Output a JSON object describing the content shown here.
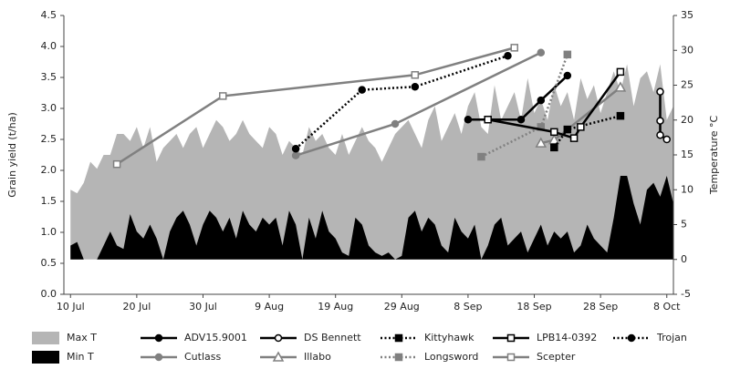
{
  "chart_data": {
    "type": "combo",
    "ylabel": "Grain yield (t/ha)",
    "y2label": "Temperature °C",
    "xlim": [
      "9 Jul",
      "9 Oct"
    ],
    "xticks": [
      "10 Jul",
      "20 Jul",
      "30 Jul",
      "9 Aug",
      "19 Aug",
      "29 Aug",
      "8 Sep",
      "18 Sep",
      "28 Sep",
      "8 Oct"
    ],
    "ylim": [
      0,
      4.5
    ],
    "yticks": [
      {
        "value": 0,
        "label": "0.0"
      },
      {
        "value": 0.5,
        "label": "0.5"
      },
      {
        "value": 1,
        "label": "1.0"
      },
      {
        "value": 1.5,
        "label": "1.5"
      },
      {
        "value": 2,
        "label": "2.0"
      },
      {
        "value": 2.5,
        "label": "2.5"
      },
      {
        "value": 3,
        "label": "3.0"
      },
      {
        "value": 3.5,
        "label": "3.5"
      },
      {
        "value": 4,
        "label": "4.0"
      },
      {
        "value": 4.5,
        "label": "4.5"
      }
    ],
    "y2lim": [
      -5,
      35
    ],
    "y2ticks": [
      -5,
      0,
      5,
      10,
      15,
      20,
      25,
      30,
      35
    ],
    "x": [
      "10 Jul",
      "11 Jul",
      "12 Jul",
      "13 Jul",
      "14 Jul",
      "15 Jul",
      "16 Jul",
      "17 Jul",
      "18 Jul",
      "19 Jul",
      "20 Jul",
      "21 Jul",
      "22 Jul",
      "23 Jul",
      "24 Jul",
      "25 Jul",
      "26 Jul",
      "27 Jul",
      "28 Jul",
      "29 Jul",
      "30 Jul",
      "31 Jul",
      "1 Aug",
      "2 Aug",
      "3 Aug",
      "4 Aug",
      "5 Aug",
      "6 Aug",
      "7 Aug",
      "8 Aug",
      "9 Aug",
      "10 Aug",
      "11 Aug",
      "12 Aug",
      "13 Aug",
      "14 Aug",
      "15 Aug",
      "16 Aug",
      "17 Aug",
      "18 Aug",
      "19 Aug",
      "20 Aug",
      "21 Aug",
      "22 Aug",
      "23 Aug",
      "24 Aug",
      "25 Aug",
      "26 Aug",
      "27 Aug",
      "28 Aug",
      "29 Aug",
      "30 Aug",
      "31 Aug",
      "1 Sep",
      "2 Sep",
      "3 Sep",
      "4 Sep",
      "5 Sep",
      "6 Sep",
      "7 Sep",
      "8 Sep",
      "9 Sep",
      "10 Sep",
      "11 Sep",
      "12 Sep",
      "13 Sep",
      "14 Sep",
      "15 Sep",
      "16 Sep",
      "17 Sep",
      "18 Sep",
      "19 Sep",
      "20 Sep",
      "21 Sep",
      "22 Sep",
      "23 Sep",
      "24 Sep",
      "25 Sep",
      "26 Sep",
      "27 Sep",
      "28 Sep",
      "29 Sep",
      "30 Sep",
      "1 Oct",
      "2 Oct",
      "3 Oct",
      "4 Oct",
      "5 Oct",
      "6 Oct",
      "7 Oct",
      "8 Oct",
      "9 Oct"
    ],
    "series": [
      {
        "name": "Max T",
        "style": "area",
        "axis": "y2",
        "color": "#b5b5b5",
        "values": [
          10,
          9.5,
          11,
          14,
          13,
          15,
          15,
          18,
          18,
          17,
          19,
          16,
          19,
          14,
          16,
          17,
          18,
          16,
          18,
          19,
          16,
          18,
          20,
          19,
          17,
          18,
          20,
          18,
          17,
          16,
          19,
          18,
          15,
          17,
          16,
          15,
          19,
          17,
          18,
          16,
          15,
          18,
          15,
          17,
          19,
          17,
          16,
          14,
          16,
          18,
          19,
          20,
          18,
          16,
          20,
          22,
          17,
          19,
          21,
          18,
          22,
          24,
          19,
          18,
          25,
          20,
          22,
          24,
          20,
          26,
          21,
          23,
          20,
          25,
          22,
          24,
          20,
          26,
          23,
          25,
          21,
          24,
          27,
          24,
          28,
          22,
          26,
          27,
          24,
          28,
          20,
          22
        ]
      },
      {
        "name": "Min T",
        "style": "area",
        "axis": "y2",
        "color": "#000000",
        "values": [
          2,
          2.5,
          0,
          0,
          0,
          2,
          4,
          2,
          1.5,
          6.5,
          4,
          3,
          5,
          3,
          0,
          4,
          6,
          7,
          5,
          2,
          5,
          7,
          6,
          4,
          6,
          3,
          7,
          5,
          4,
          6,
          5,
          6,
          2,
          7,
          5,
          0,
          6,
          3,
          7,
          4,
          3,
          1,
          0.5,
          6,
          5,
          2,
          1,
          0.5,
          1,
          0,
          0.5,
          6,
          7,
          4,
          6,
          5,
          2,
          1,
          6,
          4,
          3,
          5,
          0,
          2,
          5,
          6,
          2,
          3,
          4,
          1,
          3,
          5,
          2,
          4,
          3,
          4,
          1,
          2,
          5,
          3,
          2,
          1,
          6,
          12,
          12,
          8,
          5,
          10,
          11,
          9,
          12,
          8
        ]
      },
      {
        "name": "ADV15.9001",
        "style": "solid",
        "marker": "circle",
        "color": "#000000",
        "x": [
          "8 Sep",
          "16 Sep",
          "19 Sep",
          "23 Sep"
        ],
        "values": [
          2.82,
          2.82,
          3.13,
          3.53
        ]
      },
      {
        "name": "Cutlass",
        "style": "solid",
        "marker": "circle",
        "color": "#808080",
        "x": [
          "13 Aug",
          "28 Aug",
          "19 Sep"
        ],
        "values": [
          2.24,
          2.75,
          3.9
        ]
      },
      {
        "name": "DS Bennett",
        "style": "solid",
        "marker": "circle-open",
        "color": "#000000",
        "x": [
          "7 Oct",
          "7 Oct",
          "7 Oct",
          "8 Oct"
        ],
        "values": [
          3.27,
          2.8,
          2.57,
          2.5
        ]
      },
      {
        "name": "Illabo",
        "style": "solid",
        "marker": "triangle-open",
        "color": "#808080",
        "x": [
          "19 Sep",
          "21 Sep",
          "1 Oct"
        ],
        "values": [
          2.44,
          2.49,
          3.34
        ]
      },
      {
        "name": "Kittyhawk",
        "style": "dotted",
        "marker": "square",
        "color": "#000000",
        "x": [
          "21 Sep",
          "23 Sep",
          "1 Oct"
        ],
        "values": [
          2.37,
          2.66,
          2.88
        ]
      },
      {
        "name": "Longsword",
        "style": "dotted",
        "marker": "square",
        "color": "#808080",
        "x": [
          "10 Sep",
          "19 Sep",
          "23 Sep"
        ],
        "values": [
          2.22,
          2.7,
          3.87
        ]
      },
      {
        "name": "LPB14-0392",
        "style": "solid",
        "marker": "square-open",
        "color": "#000000",
        "x": [
          "11 Sep",
          "21 Sep",
          "24 Sep",
          "25 Sep",
          "1 Oct"
        ],
        "values": [
          2.82,
          2.62,
          2.52,
          2.7,
          3.59
        ]
      },
      {
        "name": "Scepter",
        "style": "solid",
        "marker": "square-open",
        "color": "#808080",
        "x": [
          "17 Jul",
          "2 Aug",
          "31 Aug",
          "15 Sep"
        ],
        "values": [
          2.1,
          3.2,
          3.54,
          3.98
        ]
      },
      {
        "name": "Trojan",
        "style": "dotted",
        "marker": "circle",
        "color": "#000000",
        "x": [
          "13 Aug",
          "23 Aug",
          "31 Aug",
          "14 Sep"
        ],
        "values": [
          2.35,
          3.3,
          3.35,
          3.85
        ]
      }
    ]
  }
}
